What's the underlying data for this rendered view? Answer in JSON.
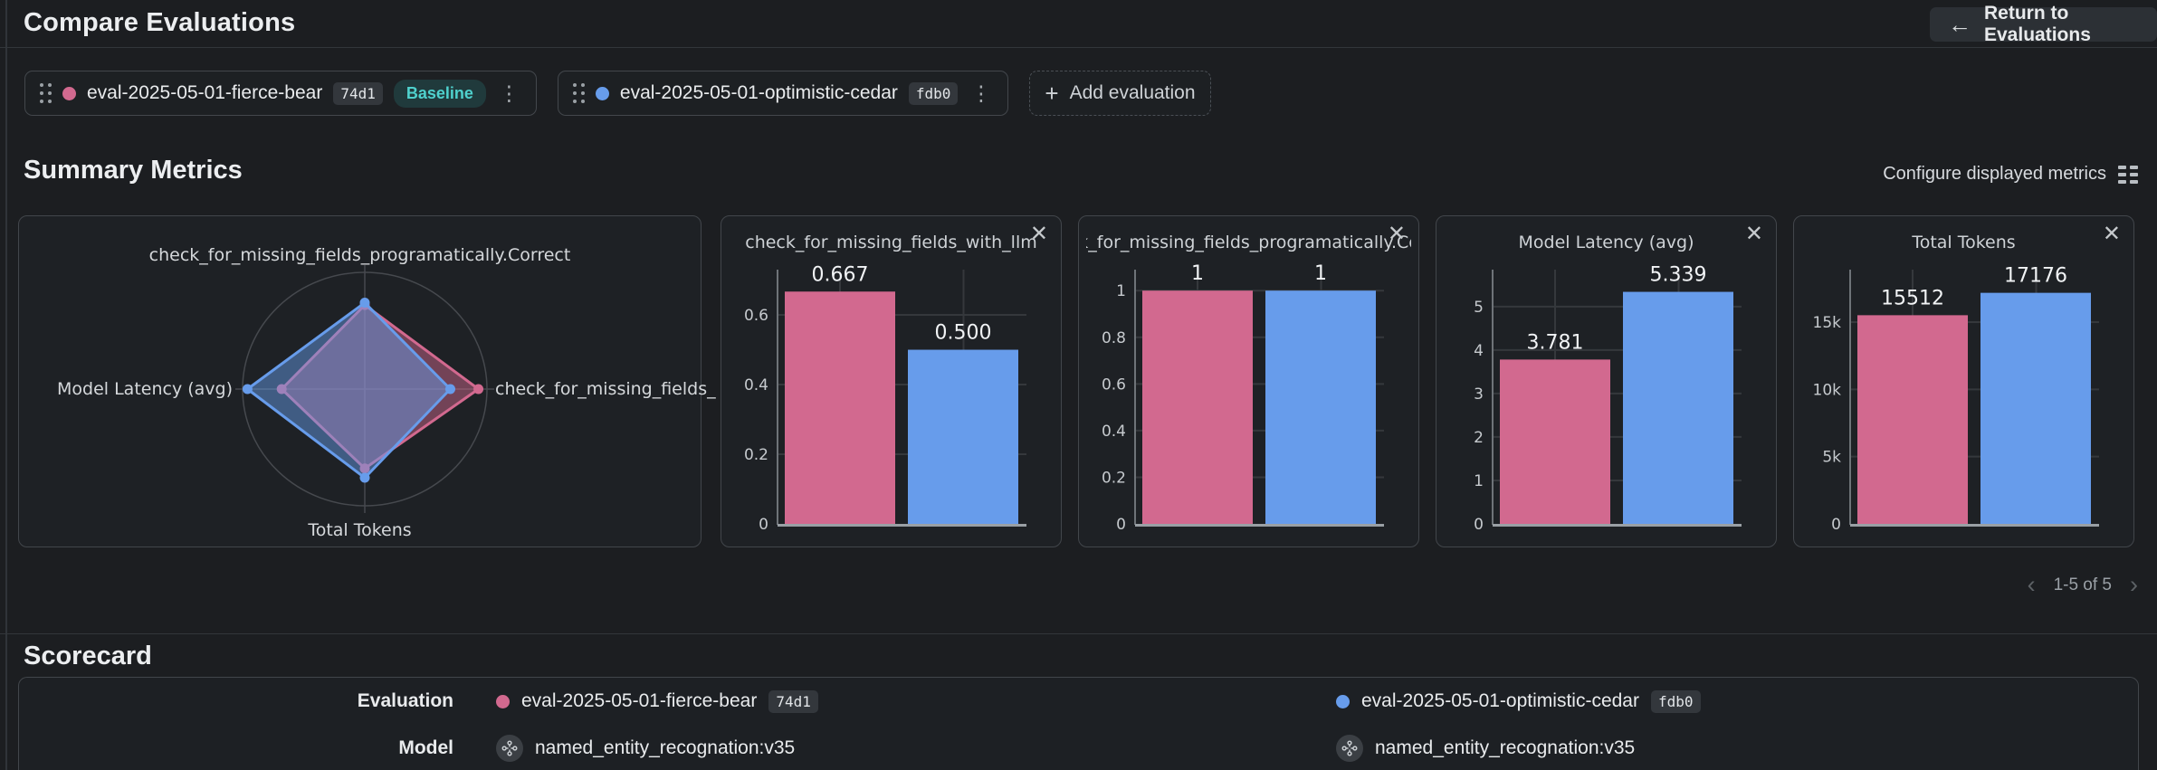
{
  "header": {
    "title": "Compare Evaluations",
    "return_label": "Return to Evaluations"
  },
  "evaluations": [
    {
      "name": "eval-2025-05-01-fierce-bear",
      "hash": "74d1",
      "baseline": "Baseline",
      "color": "#d2698f"
    },
    {
      "name": "eval-2025-05-01-optimistic-cedar",
      "hash": "fdb0",
      "color": "#679ceb"
    }
  ],
  "add_evaluation": {
    "label": "Add evaluation"
  },
  "summary": {
    "title": "Summary Metrics",
    "configure_label": "Configure displayed metrics",
    "pagination": "1-5 of 5"
  },
  "chart_data": [
    {
      "type": "radar",
      "axes": [
        "check_for_missing_fields_programatically.Correct",
        "check_for_missing_fields_",
        "Total Tokens",
        "Model Latency (avg)"
      ],
      "axis_order": "top, right, bottom, left",
      "series": [
        {
          "name": "eval-2025-05-01-fierce-bear",
          "color": "#d2698f",
          "fractions": [
            0.72,
            0.93,
            0.68,
            0.68
          ]
        },
        {
          "name": "eval-2025-05-01-optimistic-cedar",
          "color": "#679ceb",
          "fractions": [
            0.74,
            0.7,
            0.76,
            0.96
          ]
        }
      ]
    },
    {
      "type": "bar",
      "title": "check_for_missing_fields_with_llm",
      "series": [
        {
          "name": "eval-2025-05-01-fierce-bear",
          "color": "#d2698f",
          "value": 0.667,
          "label": "0.667"
        },
        {
          "name": "eval-2025-05-01-optimistic-cedar",
          "color": "#679ceb",
          "value": 0.5,
          "label": "0.500"
        }
      ],
      "tick_values": [
        0,
        0.2,
        0.4,
        0.6
      ],
      "tick_labels": [
        "0",
        "0.2",
        "0.4",
        "0.6"
      ],
      "ylim": [
        0,
        0.73
      ],
      "ymax": 0.73
    },
    {
      "type": "bar",
      "title": "check_for_missing_fields_programatically.Correct",
      "series": [
        {
          "name": "eval-2025-05-01-fierce-bear",
          "color": "#d2698f",
          "value": 1,
          "label": "1"
        },
        {
          "name": "eval-2025-05-01-optimistic-cedar",
          "color": "#679ceb",
          "value": 1,
          "label": "1"
        }
      ],
      "tick_values": [
        0,
        0.2,
        0.4,
        0.6,
        0.8,
        1
      ],
      "tick_labels": [
        "0",
        "0.2",
        "0.4",
        "0.6",
        "0.8",
        "1"
      ],
      "ylim": [
        0,
        1.09
      ],
      "ymax": 1.09
    },
    {
      "type": "bar",
      "title": "Model Latency (avg)",
      "series": [
        {
          "name": "eval-2025-05-01-fierce-bear",
          "color": "#d2698f",
          "value": 3.781,
          "label": "3.781"
        },
        {
          "name": "eval-2025-05-01-optimistic-cedar",
          "color": "#679ceb",
          "value": 5.339,
          "label": "5.339"
        }
      ],
      "tick_values": [
        0,
        1,
        2,
        3,
        4,
        5
      ],
      "tick_labels": [
        "0",
        "1",
        "2",
        "3",
        "4",
        "5"
      ],
      "ylim": [
        0,
        5.85
      ],
      "ymax": 5.85
    },
    {
      "type": "bar",
      "title": "Total Tokens",
      "series": [
        {
          "name": "eval-2025-05-01-fierce-bear",
          "color": "#d2698f",
          "value": 15512,
          "label": "15512"
        },
        {
          "name": "eval-2025-05-01-optimistic-cedar",
          "color": "#679ceb",
          "value": 17176,
          "label": "17176"
        }
      ],
      "tick_values": [
        0,
        5000,
        10000,
        15000
      ],
      "tick_labels": [
        "0",
        "5k",
        "10k",
        "15k"
      ],
      "ylim": [
        0,
        18900
      ],
      "ymax": 18900
    }
  ],
  "scorecard": {
    "title": "Scorecard",
    "row_labels": [
      "Evaluation",
      "Model"
    ],
    "models": [
      "named_entity_recognation:v35",
      "named_entity_recognation:v35"
    ]
  },
  "colors": {
    "pink": "#d2698f",
    "blue": "#679ceb",
    "baseline_text": "#4fd1cd"
  }
}
